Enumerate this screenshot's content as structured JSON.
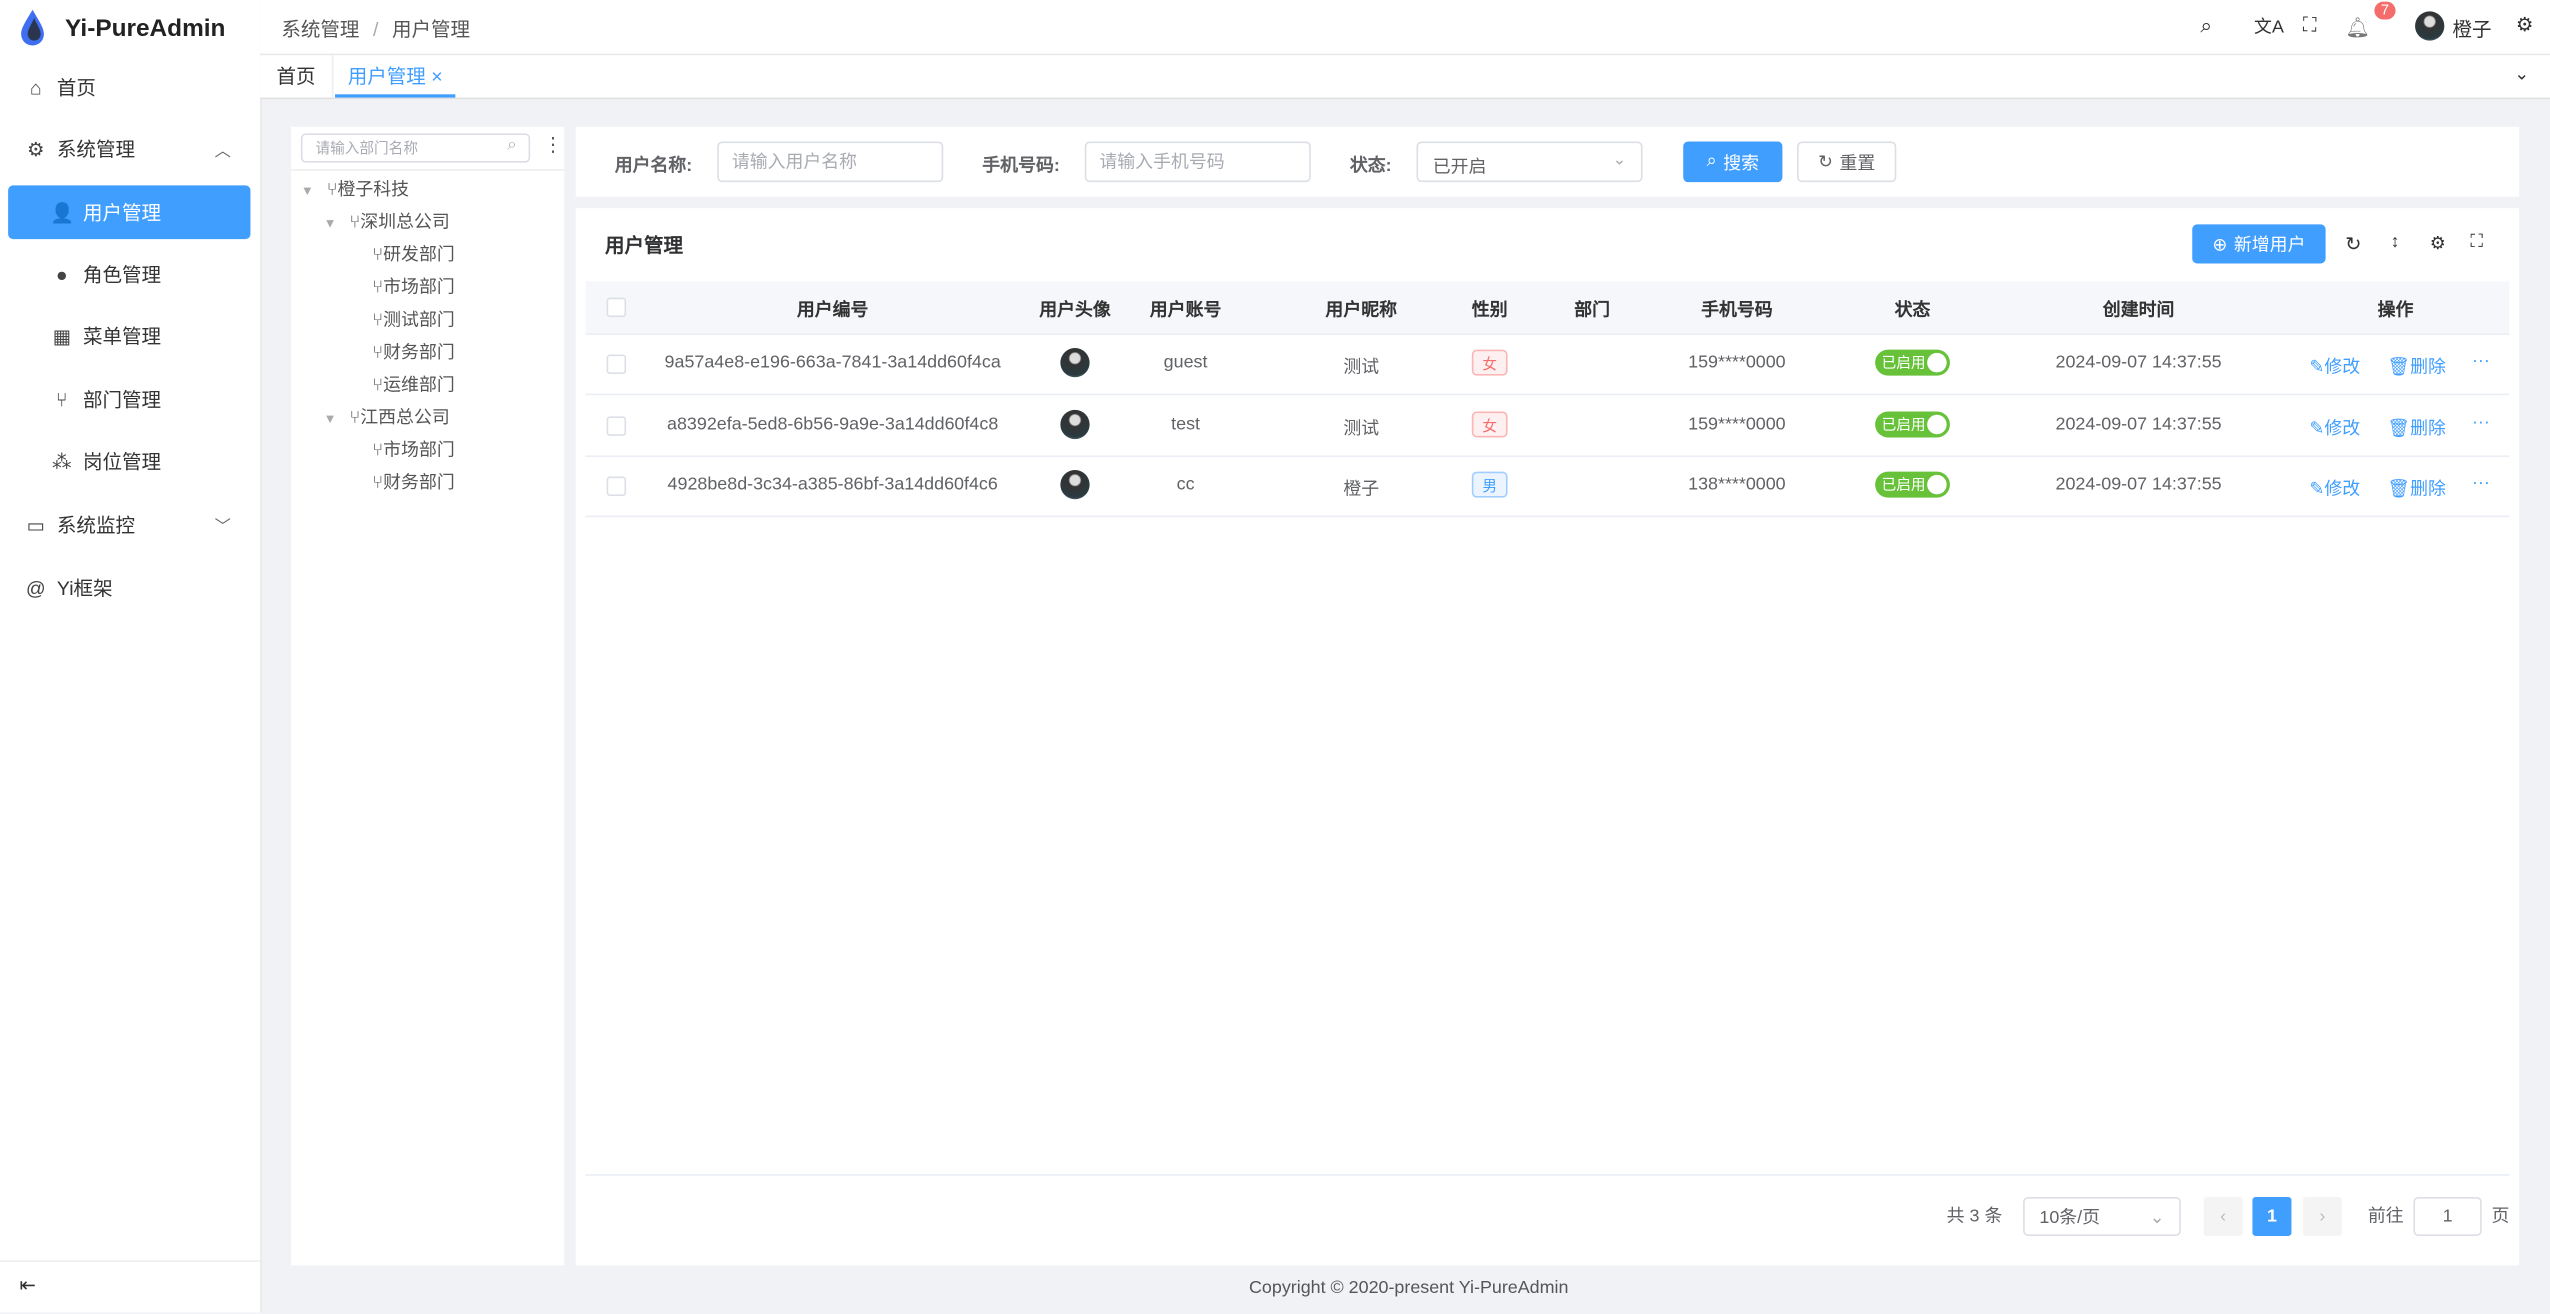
{
  "app": {
    "title": "Yi-PureAdmin"
  },
  "sidebar": {
    "items": [
      {
        "label": "首页",
        "icon": "home-icon"
      },
      {
        "label": "系统管理",
        "icon": "gear-icon",
        "expanded": true
      },
      {
        "label": "用户管理",
        "icon": "user-lock-icon",
        "active": true
      },
      {
        "label": "角色管理",
        "icon": "role-icon"
      },
      {
        "label": "菜单管理",
        "icon": "menu-grid-icon"
      },
      {
        "label": "部门管理",
        "icon": "branch-icon"
      },
      {
        "label": "岗位管理",
        "icon": "post-icon"
      },
      {
        "label": "系统监控",
        "icon": "monitor-icon",
        "expanded": false
      },
      {
        "label": "Yi框架",
        "icon": "at-icon"
      }
    ]
  },
  "header": {
    "breadcrumb": [
      "系统管理",
      "用户管理"
    ],
    "separator": "/",
    "notification_count": "7",
    "username": "橙子"
  },
  "tabs": [
    {
      "label": "首页"
    },
    {
      "label": "用户管理",
      "active": true
    }
  ],
  "tree": {
    "placeholder": "请输入部门名称",
    "nodes": [
      {
        "label": "橙子科技",
        "level": 0,
        "expandable": true
      },
      {
        "label": "深圳总公司",
        "level": 1,
        "expandable": true
      },
      {
        "label": "研发部门",
        "level": 2
      },
      {
        "label": "市场部门",
        "level": 2
      },
      {
        "label": "测试部门",
        "level": 2
      },
      {
        "label": "财务部门",
        "level": 2
      },
      {
        "label": "运维部门",
        "level": 2
      },
      {
        "label": "江西总公司",
        "level": 1,
        "expandable": true
      },
      {
        "label": "市场部门",
        "level": 2
      },
      {
        "label": "财务部门",
        "level": 2
      }
    ]
  },
  "search": {
    "username_label": "用户名称:",
    "username_placeholder": "请输入用户名称",
    "username_value": "",
    "phone_label": "手机号码:",
    "phone_placeholder": "请输入手机号码",
    "phone_value": "",
    "status_label": "状态:",
    "status_value": "已开启",
    "search_button": "搜索",
    "reset_button": "重置"
  },
  "table": {
    "title": "用户管理",
    "add_button": "新增用户",
    "columns": [
      "用户编号",
      "用户头像",
      "用户账号",
      "用户昵称",
      "性别",
      "部门",
      "手机号码",
      "状态",
      "创建时间",
      "操作"
    ],
    "rows": [
      {
        "id": "9a57a4e8-e196-663a-7841-3a14dd60f4ca",
        "account": "guest",
        "nickname": "测试",
        "gender": "女",
        "dept": "",
        "phone": "159****0000",
        "status": "已启用",
        "created": "2024-09-07 14:37:55"
      },
      {
        "id": "a8392efa-5ed8-6b56-9a9e-3a14dd60f4c8",
        "account": "test",
        "nickname": "测试",
        "gender": "女",
        "dept": "",
        "phone": "159****0000",
        "status": "已启用",
        "created": "2024-09-07 14:37:55"
      },
      {
        "id": "4928be8d-3c34-a385-86bf-3a14dd60f4c6",
        "account": "cc",
        "nickname": "橙子",
        "gender": "男",
        "dept": "",
        "phone": "138****0000",
        "status": "已启用",
        "created": "2024-09-07 14:37:55"
      }
    ],
    "edit_label": "修改",
    "delete_label": "删除"
  },
  "pagination": {
    "total": "共 3 条",
    "page_size": "10条/页",
    "current": "1",
    "goto_label": "前往",
    "goto_value": "1",
    "page_suffix": "页"
  },
  "footer": {
    "copyright": "Copyright © 2020-present Yi-PureAdmin"
  },
  "colors": {
    "primary": "#409eff",
    "success": "#67c23a",
    "female": "#f56c6c",
    "badge": "#f56c6c"
  }
}
